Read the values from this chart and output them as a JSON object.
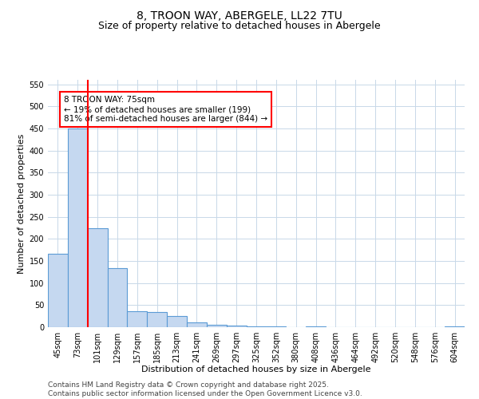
{
  "title": "8, TROON WAY, ABERGELE, LL22 7TU",
  "subtitle": "Size of property relative to detached houses in Abergele",
  "xlabel": "Distribution of detached houses by size in Abergele",
  "ylabel": "Number of detached properties",
  "categories": [
    "45sqm",
    "73sqm",
    "101sqm",
    "129sqm",
    "157sqm",
    "185sqm",
    "213sqm",
    "241sqm",
    "269sqm",
    "297sqm",
    "325sqm",
    "352sqm",
    "380sqm",
    "408sqm",
    "436sqm",
    "464sqm",
    "492sqm",
    "520sqm",
    "548sqm",
    "576sqm",
    "604sqm"
  ],
  "values": [
    167,
    449,
    224,
    133,
    36,
    35,
    25,
    10,
    6,
    3,
    2,
    1,
    0,
    1,
    0,
    0,
    0,
    0,
    0,
    0,
    1
  ],
  "bar_color": "#c5d8f0",
  "bar_edge_color": "#5b9bd5",
  "ylim": [
    0,
    560
  ],
  "yticks": [
    0,
    50,
    100,
    150,
    200,
    250,
    300,
    350,
    400,
    450,
    500,
    550
  ],
  "red_line_x": 1.5,
  "annotation_box_text": "8 TROON WAY: 75sqm\n← 19% of detached houses are smaller (199)\n81% of semi-detached houses are larger (844) →",
  "annotation_box_color": "#ff0000",
  "footer_line1": "Contains HM Land Registry data © Crown copyright and database right 2025.",
  "footer_line2": "Contains public sector information licensed under the Open Government Licence v3.0.",
  "background_color": "#ffffff",
  "grid_color": "#c8d8e8",
  "title_fontsize": 10,
  "subtitle_fontsize": 9,
  "axis_label_fontsize": 8,
  "tick_fontsize": 7,
  "annotation_fontsize": 7.5,
  "footer_fontsize": 6.5
}
